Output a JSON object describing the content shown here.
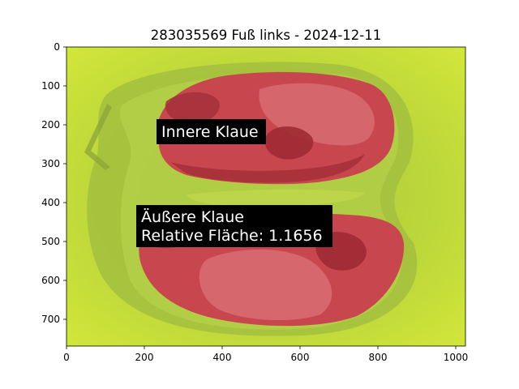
{
  "title": "283035569 Fuß links - 2024-12-11",
  "image": {
    "description_colors": {
      "background": "#cfe23a",
      "shadow": "#a9c53c",
      "claw_overlay": "#c8474f",
      "claw_dark": "#9e2a33"
    }
  },
  "axes": {
    "x_ticks": [
      "0",
      "200",
      "400",
      "600",
      "800",
      "1000"
    ],
    "y_ticks": [
      "0",
      "100",
      "200",
      "300",
      "400",
      "500",
      "600",
      "700"
    ],
    "xlim": [
      0,
      1024
    ],
    "ylim": [
      768,
      0
    ]
  },
  "annotations": [
    {
      "lines": [
        "Innere Klaue"
      ]
    },
    {
      "lines": [
        "Äußere Klaue",
        "Relative Fläche: 1.1656"
      ]
    }
  ]
}
